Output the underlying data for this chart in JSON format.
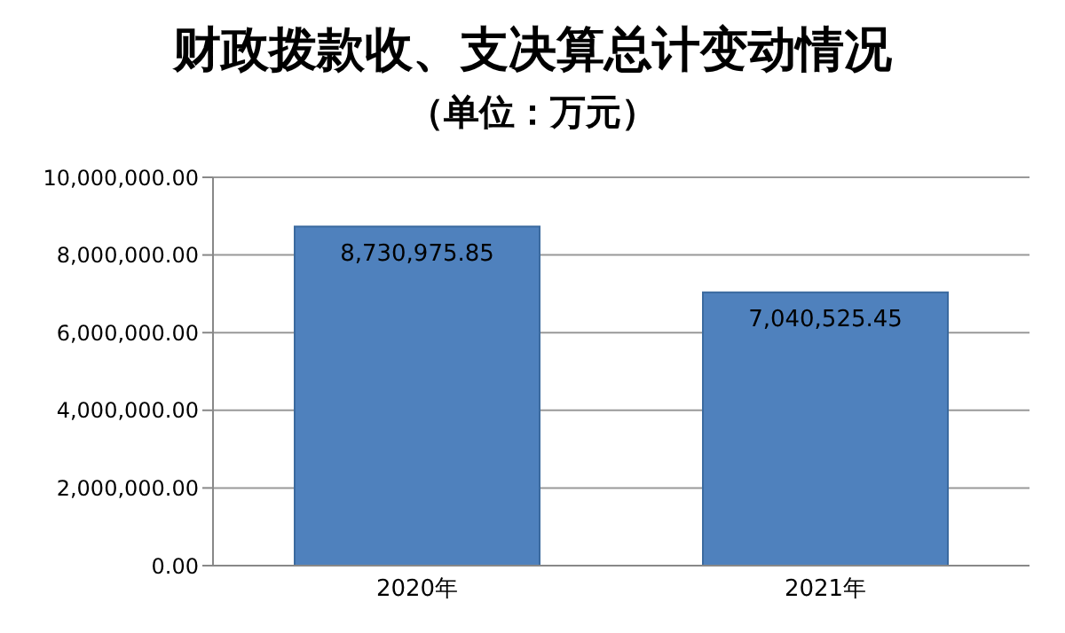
{
  "chart_data": {
    "type": "bar",
    "title": "财政拨款收、支决算总计变动情况",
    "subtitle": "（单位：万元）",
    "categories": [
      "2020年",
      "2021年"
    ],
    "values": [
      8730975.85,
      7040525.45
    ],
    "color": "#4f81bd",
    "ylim": [
      0,
      10000000
    ],
    "yticks": [
      {
        "value": 0,
        "label": "0.00"
      },
      {
        "value": 2000000,
        "label": "2,000,000.00"
      },
      {
        "value": 4000000,
        "label": "4,000,000.00"
      },
      {
        "value": 6000000,
        "label": "6,000,000.00"
      },
      {
        "value": 8000000,
        "label": "8,000,000.00"
      },
      {
        "value": 10000000,
        "label": "10,000,000.00"
      }
    ],
    "value_labels": [
      "8,730,975.85",
      "7,040,525.45"
    ],
    "grid": "y"
  }
}
